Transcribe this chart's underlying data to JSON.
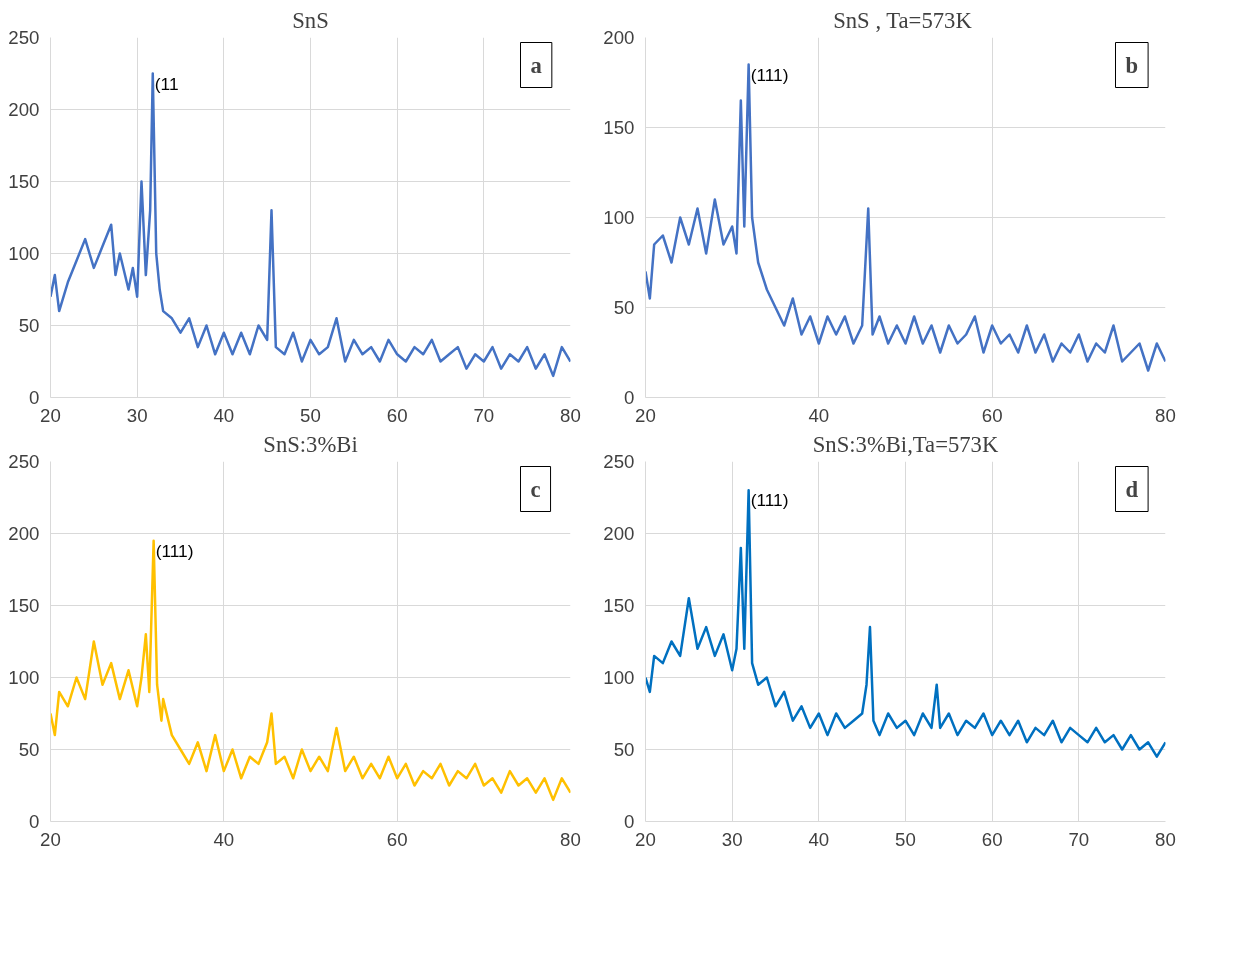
{
  "chart_data": [
    {
      "type": "line",
      "title": "SnS",
      "xlim": [
        20,
        80
      ],
      "ylim": [
        0,
        250
      ],
      "xticks": [
        20,
        30,
        40,
        50,
        60,
        70,
        80
      ],
      "yticks": [
        0,
        50,
        100,
        150,
        200,
        250
      ],
      "grid": true,
      "annotations": [
        "(11",
        "a"
      ],
      "series": [
        {
          "color": "#4472c4",
          "x": [
            20,
            20.5,
            21,
            22,
            23,
            24,
            25,
            26,
            27,
            27.5,
            28,
            29,
            29.5,
            30,
            30.5,
            31,
            31.5,
            31.8,
            32.2,
            32.6,
            33,
            34,
            35,
            36,
            37,
            38,
            39,
            40,
            41,
            42,
            43,
            44,
            45,
            45.5,
            46,
            47,
            48,
            49,
            50,
            51,
            52,
            53,
            54,
            55,
            56,
            57,
            58,
            59,
            60,
            61,
            62,
            63,
            64,
            65,
            66,
            67,
            68,
            69,
            70,
            71,
            72,
            73,
            74,
            75,
            76,
            77,
            78,
            79,
            80
          ],
          "values": [
            70,
            85,
            60,
            80,
            95,
            110,
            90,
            105,
            120,
            85,
            100,
            75,
            90,
            70,
            150,
            85,
            130,
            225,
            100,
            75,
            60,
            55,
            45,
            55,
            35,
            50,
            30,
            45,
            30,
            45,
            30,
            50,
            40,
            130,
            35,
            30,
            45,
            25,
            40,
            30,
            35,
            55,
            25,
            40,
            30,
            35,
            25,
            40,
            30,
            25,
            35,
            30,
            40,
            25,
            30,
            35,
            20,
            30,
            25,
            35,
            20,
            30,
            25,
            35,
            20,
            30,
            15,
            35,
            25
          ]
        }
      ]
    },
    {
      "type": "line",
      "title": "SnS  , Ta=573K",
      "xlim": [
        20,
        80
      ],
      "ylim": [
        0,
        200
      ],
      "xticks": [
        20,
        40,
        60,
        80
      ],
      "yticks": [
        0,
        50,
        100,
        150,
        200
      ],
      "grid": true,
      "annotations": [
        "(111)",
        "b"
      ],
      "series": [
        {
          "color": "#4472c4",
          "x": [
            20,
            20.5,
            21,
            22,
            23,
            24,
            25,
            26,
            27,
            28,
            29,
            30,
            30.5,
            31,
            31.4,
            31.9,
            32.3,
            33,
            34,
            35,
            36,
            37,
            38,
            39,
            40,
            41,
            42,
            43,
            44,
            45,
            45.7,
            46.2,
            47,
            48,
            49,
            50,
            51,
            52,
            53,
            54,
            55,
            56,
            57,
            58,
            59,
            60,
            61,
            62,
            63,
            64,
            65,
            66,
            67,
            68,
            69,
            70,
            71,
            72,
            73,
            74,
            75,
            76,
            77,
            78,
            79,
            80
          ],
          "values": [
            70,
            55,
            85,
            90,
            75,
            100,
            85,
            105,
            80,
            110,
            85,
            95,
            80,
            165,
            95,
            185,
            100,
            75,
            60,
            50,
            40,
            55,
            35,
            45,
            30,
            45,
            35,
            45,
            30,
            40,
            105,
            35,
            45,
            30,
            40,
            30,
            45,
            30,
            40,
            25,
            40,
            30,
            35,
            45,
            25,
            40,
            30,
            35,
            25,
            40,
            25,
            35,
            20,
            30,
            25,
            35,
            20,
            30,
            25,
            40,
            20,
            25,
            30,
            15,
            30,
            20
          ]
        }
      ]
    },
    {
      "type": "line",
      "title": "SnS:3%Bi",
      "xlim": [
        20,
        80
      ],
      "ylim": [
        0,
        250
      ],
      "xticks": [
        20,
        40,
        60,
        80
      ],
      "yticks": [
        0,
        50,
        100,
        150,
        200,
        250
      ],
      "grid": true,
      "annotations": [
        "(111)",
        "c"
      ],
      "series": [
        {
          "color": "#ffc000",
          "x": [
            20,
            20.5,
            21,
            22,
            23,
            24,
            25,
            26,
            27,
            28,
            29,
            30,
            30.5,
            31,
            31.4,
            31.9,
            32.3,
            32.8,
            33,
            34,
            35,
            36,
            37,
            38,
            39,
            40,
            41,
            42,
            43,
            44,
            45,
            45.5,
            46,
            47,
            48,
            49,
            50,
            51,
            52,
            53,
            54,
            55,
            56,
            57,
            58,
            59,
            60,
            61,
            62,
            63,
            64,
            65,
            66,
            67,
            68,
            69,
            70,
            71,
            72,
            73,
            74,
            75,
            76,
            77,
            78,
            79,
            80
          ],
          "values": [
            75,
            60,
            90,
            80,
            100,
            85,
            125,
            95,
            110,
            85,
            105,
            80,
            100,
            130,
            90,
            195,
            95,
            70,
            85,
            60,
            50,
            40,
            55,
            35,
            60,
            35,
            50,
            30,
            45,
            40,
            55,
            75,
            40,
            45,
            30,
            50,
            35,
            45,
            35,
            65,
            35,
            45,
            30,
            40,
            30,
            45,
            30,
            40,
            25,
            35,
            30,
            40,
            25,
            35,
            30,
            40,
            25,
            30,
            20,
            35,
            25,
            30,
            20,
            30,
            15,
            30,
            20
          ]
        }
      ]
    },
    {
      "type": "line",
      "title": "SnS:3%Bi,Ta=573K",
      "xlim": [
        20,
        80
      ],
      "ylim": [
        0,
        250
      ],
      "xticks": [
        20,
        30,
        40,
        50,
        60,
        70,
        80
      ],
      "yticks": [
        0,
        50,
        100,
        150,
        200,
        250
      ],
      "grid": true,
      "annotations": [
        "(111)",
        "d"
      ],
      "series": [
        {
          "color": "#0070c0",
          "x": [
            20,
            20.5,
            21,
            22,
            23,
            24,
            25,
            26,
            27,
            28,
            29,
            30,
            30.5,
            31,
            31.4,
            31.9,
            32.3,
            33,
            34,
            35,
            36,
            37,
            38,
            39,
            40,
            41,
            42,
            43,
            44,
            45,
            45.5,
            45.9,
            46.3,
            47,
            48,
            49,
            50,
            51,
            52,
            53,
            53.6,
            54,
            55,
            56,
            57,
            58,
            59,
            60,
            61,
            62,
            63,
            64,
            65,
            66,
            67,
            68,
            69,
            70,
            71,
            72,
            73,
            74,
            75,
            76,
            77,
            78,
            79,
            80
          ],
          "values": [
            100,
            90,
            115,
            110,
            125,
            115,
            155,
            120,
            135,
            115,
            130,
            105,
            120,
            190,
            120,
            230,
            110,
            95,
            100,
            80,
            90,
            70,
            80,
            65,
            75,
            60,
            75,
            65,
            70,
            75,
            95,
            135,
            70,
            60,
            75,
            65,
            70,
            60,
            75,
            65,
            95,
            65,
            75,
            60,
            70,
            65,
            75,
            60,
            70,
            60,
            70,
            55,
            65,
            60,
            70,
            55,
            65,
            60,
            55,
            65,
            55,
            60,
            50,
            60,
            50,
            55,
            45,
            55
          ]
        }
      ]
    }
  ]
}
